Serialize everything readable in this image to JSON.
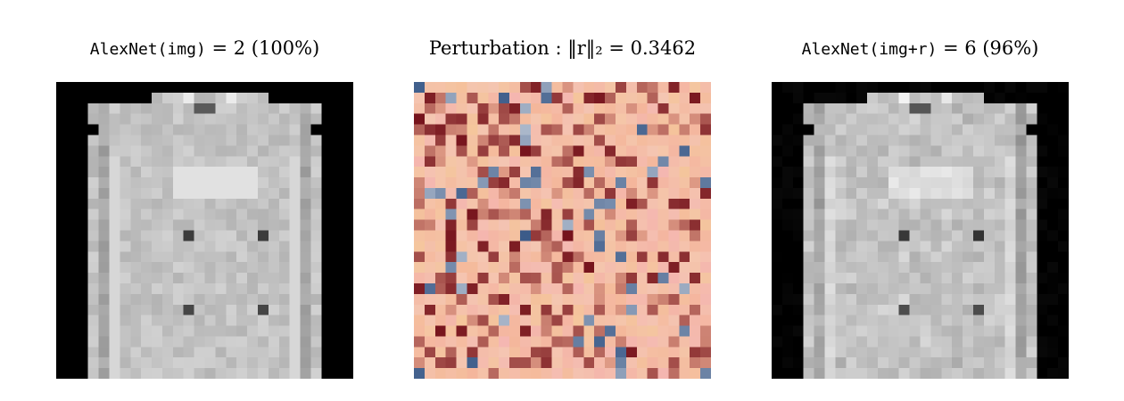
{
  "panels": [
    {
      "id": "original",
      "title_model": "AlexNet(img)",
      "title_rest": " = 2 (100%)",
      "colormap": "gray"
    },
    {
      "id": "perturbation",
      "title": "Perturbation : ‖r‖₂ = 0.3462",
      "colormap": "RdBu_r",
      "colors": {
        "negative": "#08306b",
        "zero": "#f7f7f7",
        "positive": "#67000d"
      }
    },
    {
      "id": "adversarial",
      "title_model": "AlexNet(img+r)",
      "title_rest": " = 6 (96%)",
      "colormap": "gray"
    }
  ]
}
